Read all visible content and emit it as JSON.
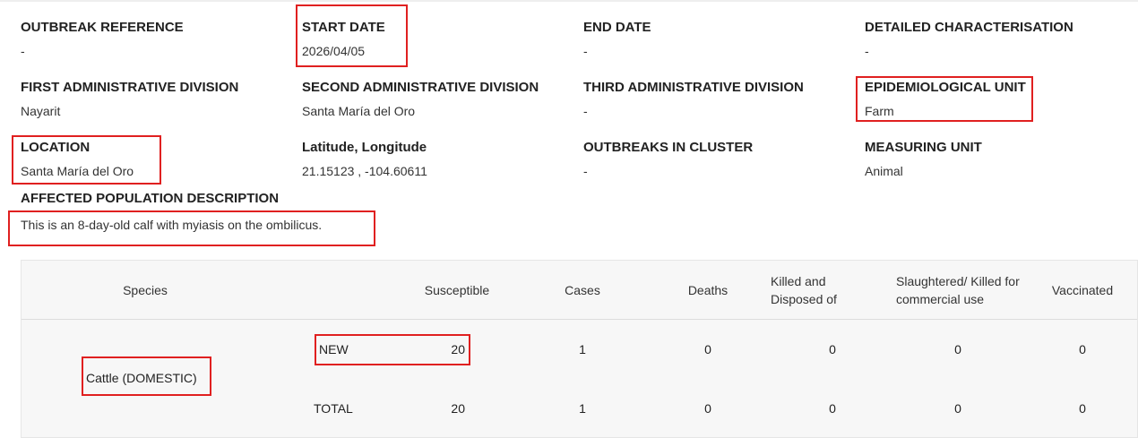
{
  "fields": [
    {
      "label": "OUTBREAK REFERENCE",
      "value": "-"
    },
    {
      "label": "START DATE",
      "value": "2026/04/05"
    },
    {
      "label": "END DATE",
      "value": "-"
    },
    {
      "label": "DETAILED CHARACTERISATION",
      "value": "-"
    },
    {
      "label": "FIRST ADMINISTRATIVE DIVISION",
      "value": "Nayarit"
    },
    {
      "label": "SECOND ADMINISTRATIVE DIVISION",
      "value": "Santa María del Oro"
    },
    {
      "label": "THIRD ADMINISTRATIVE DIVISION",
      "value": "-"
    },
    {
      "label": "EPIDEMIOLOGICAL UNIT",
      "value": "Farm"
    },
    {
      "label": "LOCATION",
      "value": "Santa María del Oro"
    },
    {
      "label": "Latitude, Longitude",
      "value": "21.15123 , -104.60611"
    },
    {
      "label": "OUTBREAKS IN CLUSTER",
      "value": "-"
    },
    {
      "label": "MEASURING UNIT",
      "value": "Animal"
    }
  ],
  "description": {
    "label": "AFFECTED POPULATION DESCRIPTION",
    "value": "This is an 8-day-old calf with myiasis on the ombilicus."
  },
  "table": {
    "headers": [
      "Species",
      "Susceptible",
      "Cases",
      "Deaths",
      "Killed and Disposed of",
      "Slaughtered/ Killed for commercial use",
      "Vaccinated"
    ],
    "species": "Cattle (DOMESTIC)",
    "rows": [
      {
        "type": "NEW",
        "values": [
          20,
          1,
          0,
          0,
          0,
          0
        ]
      },
      {
        "type": "TOTAL",
        "values": [
          20,
          1,
          0,
          0,
          0,
          0
        ]
      }
    ]
  }
}
